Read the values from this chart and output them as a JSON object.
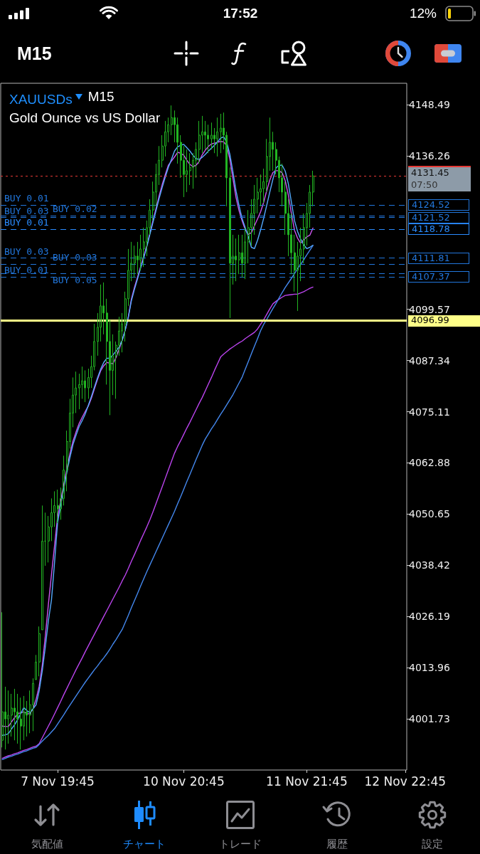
{
  "chart_data": {
    "type": "candlestick",
    "title": "XAUUSDs",
    "subtitle": "Gold Ounce vs US Dollar",
    "annotations": [
      "17:52",
      "12%",
      "M15",
      "M15",
      "気配値",
      "チャート",
      "トレード",
      "履歴",
      "設定",
      "07:50",
      {
        "text": "BUY 0.01",
        "y": 4124.52
      },
      {
        "text": "BUY 0.03",
        "y": 4121.52
      },
      {
        "text": "BUY 0.01",
        "y": 4118.78
      },
      {
        "text": "BUY 0.03",
        "y": 4111.81
      },
      {
        "text": "BUY 0.01",
        "y": 4107.37
      },
      {
        "text": "BUY 0.02",
        "y": 4122.0
      },
      {
        "text": "BUY 0.03",
        "y": 4110.4
      },
      {
        "text": "BUY 0.05",
        "y": 4108.2
      }
    ],
    "color": "#22b422",
    "categories": [
      null,
      null,
      null,
      null,
      null,
      null,
      null,
      null,
      null,
      null,
      null,
      null,
      null,
      null,
      null,
      null,
      null,
      null,
      "7 Nov 19:45",
      null,
      null,
      null,
      null,
      null,
      null,
      null,
      null,
      null,
      null,
      null,
      null,
      null,
      null,
      null,
      null,
      null,
      null,
      null,
      null,
      null,
      null,
      null,
      null,
      null,
      null,
      null,
      null,
      null,
      null,
      null,
      null,
      null,
      null,
      null,
      null,
      null,
      null,
      null,
      null,
      "10 Nov 20:45",
      null,
      null,
      null,
      null,
      null,
      null,
      null,
      null,
      null,
      null,
      null,
      null,
      null,
      null,
      null,
      null,
      null,
      null,
      null,
      null,
      null,
      null,
      null,
      null,
      null,
      null,
      null,
      null,
      null,
      null,
      null,
      null,
      null,
      null,
      null,
      null,
      null,
      null,
      null,
      "11 Nov 21:45",
      null,
      null,
      null,
      null,
      null,
      null,
      null,
      null,
      null,
      null,
      null,
      null,
      null,
      null,
      null,
      null,
      null,
      null,
      null,
      null,
      null,
      null,
      null,
      null,
      null,
      null,
      null,
      null,
      null,
      null,
      null,
      "12 Nov 22:45"
    ],
    "ohlc": [
      [
        3996.6,
        4027.2,
        3994.9,
        4003.4
      ],
      [
        4003.4,
        4009.4,
        3994.4,
        4001.7
      ],
      [
        4001.7,
        4008.5,
        3995.8,
        4002.6
      ],
      [
        4002.6,
        4007.7,
        3997.5,
        4004.3
      ],
      [
        4004.3,
        4008.9,
        3996.6,
        4003.4
      ],
      [
        4003.4,
        4007.7,
        3995.8,
        4001.7
      ],
      [
        4001.7,
        4006.8,
        3994.4,
        4000.0
      ],
      [
        4000.0,
        4007.2,
        3996.6,
        4003.4
      ],
      [
        4003.4,
        4006.0,
        3997.5,
        4002.6
      ],
      [
        4002.6,
        4008.5,
        3998.3,
        4005.1
      ],
      [
        4005.1,
        4011.4,
        3998.8,
        4010.2
      ],
      [
        4011.1,
        4017.0,
        4011.1,
        4015.3
      ],
      [
        4015.3,
        4023.8,
        4011.9,
        4022.1
      ],
      [
        4023.0,
        4052.7,
        4023.0,
        4044.2
      ],
      [
        4044.2,
        4051.0,
        4038.3,
        4044.2
      ],
      [
        4044.2,
        4050.2,
        4039.1,
        4047.6
      ],
      [
        4047.6,
        4054.4,
        4044.2,
        4051.0
      ],
      [
        4051.0,
        4056.1,
        4047.6,
        4052.7
      ],
      [
        4052.7,
        4056.5,
        4048.5,
        4051.9
      ],
      [
        4051.9,
        4057.0,
        4049.3,
        4054.4
      ],
      [
        4054.4,
        4064.6,
        4052.7,
        4061.2
      ],
      [
        4061.2,
        4070.6,
        4056.1,
        4068.0
      ],
      [
        4068.0,
        4078.2,
        4066.3,
        4074.8
      ],
      [
        4074.8,
        4083.3,
        4071.4,
        4079.1
      ],
      [
        4079.1,
        4084.7,
        4074.8,
        4080.8
      ],
      [
        4080.8,
        4084.2,
        4075.7,
        4081.6
      ],
      [
        4081.6,
        4085.9,
        4078.2,
        4082.5
      ],
      [
        4082.5,
        4085.0,
        4077.4,
        4080.8
      ],
      [
        4080.8,
        4085.4,
        4078.2,
        4083.3
      ],
      [
        4083.3,
        4088.5,
        4080.8,
        4085.9
      ],
      [
        4085.9,
        4096.1,
        4085.0,
        4091.9
      ],
      [
        4091.9,
        4098.7,
        4088.5,
        4095.3
      ],
      [
        4095.3,
        4105.5,
        4091.9,
        4100.4
      ],
      [
        4100.4,
        4106.0,
        4093.6,
        4098.7
      ],
      [
        4098.7,
        4102.1,
        4081.6,
        4091.9
      ],
      [
        4091.9,
        4097.0,
        4074.3,
        4085.0
      ],
      [
        4085.0,
        4093.6,
        4079.1,
        4088.5
      ],
      [
        4088.5,
        4091.9,
        4078.2,
        4091.0
      ],
      [
        4091.0,
        4097.8,
        4088.5,
        4094.4
      ],
      [
        4094.4,
        4098.7,
        4089.3,
        4096.1
      ],
      [
        4096.1,
        4103.8,
        4091.9,
        4102.1
      ],
      [
        4102.1,
        4114.0,
        4100.4,
        4108.9
      ],
      [
        4108.9,
        4115.7,
        4106.3,
        4110.6
      ],
      [
        4110.6,
        4114.8,
        4107.2,
        4112.3
      ],
      [
        4112.3,
        4115.7,
        4108.0,
        4111.4
      ],
      [
        4111.4,
        4117.4,
        4108.9,
        4114.0
      ],
      [
        4114.0,
        4119.1,
        4109.7,
        4115.7
      ],
      [
        4115.7,
        4120.8,
        4112.3,
        4119.1
      ],
      [
        4119.1,
        4125.9,
        4117.4,
        4123.3
      ],
      [
        4123.3,
        4130.1,
        4120.8,
        4127.6
      ],
      [
        4127.6,
        4134.4,
        4124.2,
        4131.8
      ],
      [
        4131.8,
        4138.6,
        4129.3,
        4135.2
      ],
      [
        4135.2,
        4141.2,
        4133.5,
        4138.6
      ],
      [
        4138.6,
        4144.6,
        4136.1,
        4142.0
      ],
      [
        4142.0,
        4145.4,
        4139.5,
        4143.7
      ],
      [
        4143.7,
        4148.3,
        4141.2,
        4145.4
      ],
      [
        4145.4,
        4147.1,
        4139.5,
        4143.7
      ],
      [
        4143.7,
        4145.4,
        4134.4,
        4139.5
      ],
      [
        4139.5,
        4141.2,
        4131.0,
        4135.2
      ],
      [
        4135.2,
        4138.6,
        4126.4,
        4131.8
      ],
      [
        4131.8,
        4137.8,
        4127.6,
        4132.7
      ],
      [
        4132.7,
        4136.9,
        4129.3,
        4133.5
      ],
      [
        4133.5,
        4136.9,
        4128.4,
        4135.2
      ],
      [
        4135.2,
        4139.5,
        4131.0,
        4137.8
      ],
      [
        4137.8,
        4144.6,
        4134.4,
        4141.2
      ],
      [
        4141.2,
        4145.8,
        4136.9,
        4142.0
      ],
      [
        4142.0,
        4144.6,
        4137.8,
        4141.2
      ],
      [
        4141.2,
        4143.7,
        4136.9,
        4140.3
      ],
      [
        4140.3,
        4144.2,
        4137.8,
        4141.2
      ],
      [
        4141.2,
        4142.9,
        4136.9,
        4140.3
      ],
      [
        4140.3,
        4145.4,
        4136.1,
        4142.0
      ],
      [
        4142.0,
        4146.3,
        4136.9,
        4142.9
      ],
      [
        4142.9,
        4146.6,
        4137.8,
        4141.2
      ],
      [
        4141.2,
        4142.0,
        4124.2,
        4131.0
      ],
      [
        4131.0,
        4133.5,
        4097.5,
        4110.6
      ],
      [
        4110.6,
        4117.4,
        4105.5,
        4112.3
      ],
      [
        4112.3,
        4116.5,
        4106.3,
        4111.4
      ],
      [
        4111.4,
        4117.4,
        4108.0,
        4113.1
      ],
      [
        4113.1,
        4117.4,
        4107.2,
        4110.6
      ],
      [
        4110.6,
        4119.1,
        4106.8,
        4115.7
      ],
      [
        4115.7,
        4123.3,
        4110.6,
        4119.1
      ],
      [
        4119.1,
        4125.9,
        4114.8,
        4122.5
      ],
      [
        4122.5,
        4129.3,
        4117.4,
        4125.9
      ],
      [
        4125.9,
        4131.0,
        4122.5,
        4127.6
      ],
      [
        4127.6,
        4131.8,
        4124.2,
        4128.4
      ],
      [
        4128.4,
        4133.2,
        4125.0,
        4130.1
      ],
      [
        4130.1,
        4140.3,
        4127.6,
        4136.1
      ],
      [
        4136.1,
        4145.4,
        4132.7,
        4139.5
      ],
      [
        4139.5,
        4142.0,
        4132.7,
        4137.8
      ],
      [
        4137.8,
        4139.5,
        4131.8,
        4135.2
      ],
      [
        4135.2,
        4136.1,
        4127.6,
        4131.0
      ],
      [
        4131.0,
        4134.4,
        4124.2,
        4127.6
      ],
      [
        4127.6,
        4130.1,
        4117.4,
        4122.5
      ],
      [
        4122.5,
        4125.9,
        4112.3,
        4117.4
      ],
      [
        4117.4,
        4122.5,
        4108.0,
        4113.1
      ],
      [
        4113.1,
        4117.4,
        4103.8,
        4108.9
      ],
      [
        4108.9,
        4115.7,
        4099.2,
        4112.3
      ],
      [
        4112.3,
        4119.1,
        4106.3,
        4114.0
      ],
      [
        4114.0,
        4122.5,
        4110.6,
        4119.1
      ],
      [
        4119.1,
        4125.0,
        4114.8,
        4122.5
      ],
      [
        4122.5,
        4129.3,
        4119.1,
        4127.6
      ],
      [
        4127.6,
        4132.7,
        4124.2,
        4131.45
      ],
      null,
      null,
      null,
      null,
      null,
      null,
      null,
      null,
      null,
      null,
      null,
      null,
      null,
      null,
      null,
      null,
      null,
      null,
      null,
      null,
      null,
      null,
      null,
      null,
      null,
      null,
      null,
      null,
      null,
      null
    ],
    "series": [
      {
        "type": "line",
        "color": "#cc55ee",
        "values": [
          4000.0,
          3999.9,
          3999.9,
          4001.0,
          4002.0,
          4002.9,
          4003.2,
          4003.4,
          4003.0,
          4002.9,
          4004.2,
          4006.4,
          4009.5,
          4014.5,
          4021.5,
          4029.1,
          4036.2,
          4043.1,
          4050.0,
          4053.9,
          4057.8,
          4061.5,
          4065.1,
          4068.1,
          4070.3,
          4072.3,
          4073.8,
          4075.2,
          4076.5,
          4078.4,
          4080.7,
          4082.9,
          4084.9,
          4086.1,
          4086.9,
          4086.7,
          4086.6,
          4088.1,
          4090.1,
          4092.2,
          4094.7,
          4097.9,
          4102.1,
          4104.9,
          4107.3,
          4109.8,
          4112.3,
          4114.8,
          4117.8,
          4120.8,
          4123.7,
          4126.7,
          4129.4,
          4131.8,
          4134.0,
          4135.0,
          4136.0,
          4137.1,
          4136.9,
          4136.4,
          4135.2,
          4134.2,
          4133.7,
          4134.0,
          4134.9,
          4136.5,
          4137.6,
          4138.5,
          4139.1,
          4139.3,
          4139.5,
          4139.7,
          4139.6,
          4138.6,
          4135.4,
          4130.8,
          4126.3,
          4123.1,
          4120.7,
          4118.6,
          4117.5,
          4117.9,
          4119.6,
          4121.2,
          4122.9,
          4125.2,
          4128.0,
          4130.5,
          4132.3,
          4132.7,
          4132.7,
          4132.2,
          4130.3,
          4126.9,
          4122.5,
          4118.5,
          4116.6,
          4115.4,
          4116.2,
          4116.9,
          4117.3,
          4119.0,
          null,
          null,
          null,
          null,
          null,
          null,
          null,
          null,
          null,
          null,
          null,
          null,
          null,
          null,
          null,
          null,
          null,
          null,
          null,
          null,
          null,
          null,
          null,
          null,
          null,
          null,
          null,
          null,
          null,
          null
        ]
      },
      {
        "type": "line",
        "color": "#55aaff",
        "values": [
          3997.8,
          3997.9,
          3998.2,
          3999.3,
          4000.3,
          4001.5,
          4003.0,
          4004.4,
          4003.7,
          4003.2,
          4004.1,
          4005.1,
          4008.4,
          4013.1,
          4018.9,
          4025.2,
          4030.1,
          4039.1,
          4048.7,
          4052.7,
          4056.7,
          4060.6,
          4064.2,
          4067.3,
          4069.5,
          4071.6,
          4073.0,
          4074.6,
          4076.7,
          4078.8,
          4081.1,
          4083.3,
          4085.3,
          4086.9,
          4087.9,
          4087.9,
          4088.7,
          4089.6,
          4090.6,
          4092.2,
          4094.7,
          4097.7,
          4101.7,
          4104.4,
          4106.9,
          4109.5,
          4111.9,
          4114.5,
          4117.5,
          4120.4,
          4123.2,
          4126.1,
          4128.7,
          4131.2,
          4133.5,
          4135.4,
          4137.4,
          4138.4,
          4138.8,
          4139.0,
          4138.2,
          4137.4,
          4136.4,
          4135.6,
          4135.4,
          4135.9,
          4136.6,
          4137.4,
          4138.1,
          4138.8,
          4139.6,
          4140.5,
          4140.8,
          4139.4,
          4136.6,
          4132.4,
          4127.9,
          4124.3,
          4121.2,
          4119.1,
          4116.9,
          4114.4,
          4114.1,
          4116.1,
          4118.6,
          4121.4,
          4124.5,
          4127.7,
          4130.7,
          4133.4,
          4134.0,
          4134.0,
          4132.6,
          4129.6,
          4125.2,
          4120.8,
          4118.2,
          4116.4,
          4115.0,
          4114.1,
          4114.4,
          4114.9,
          null,
          null,
          null,
          null,
          null,
          null,
          null,
          null,
          null,
          null,
          null,
          null,
          null,
          null,
          null,
          null,
          null,
          null,
          null,
          null,
          null,
          null,
          null,
          null,
          null,
          null,
          null,
          null,
          null,
          null
        ]
      },
      {
        "type": "line",
        "color": "#bb44ee",
        "values": [
          3992.3,
          3992.6,
          3992.9,
          3993.1,
          3993.4,
          3993.6,
          3993.9,
          3994.2,
          3994.4,
          3994.7,
          3995.0,
          3995.2,
          3995.8,
          3997.2,
          3998.6,
          4000.0,
          4001.4,
          4002.9,
          4004.4,
          4005.9,
          4007.5,
          4009.0,
          4010.5,
          4012.0,
          4013.5,
          4014.9,
          4016.3,
          4017.8,
          4019.2,
          4020.6,
          4022.0,
          4023.4,
          4024.8,
          4026.2,
          4027.6,
          4029.0,
          4030.4,
          4031.8,
          4033.2,
          4034.7,
          4036.1,
          4037.7,
          4039.4,
          4041.0,
          4042.7,
          4044.4,
          4046.0,
          4047.6,
          4049.3,
          4051.2,
          4053.2,
          4055.2,
          4057.2,
          4059.2,
          4061.2,
          4063.2,
          4065.2,
          4066.8,
          4068.2,
          4069.7,
          4071.2,
          4072.6,
          4074.1,
          4075.6,
          4077.1,
          4078.5,
          4080.1,
          4081.7,
          4083.3,
          4085.0,
          4086.6,
          4088.2,
          4088.9,
          4089.5,
          4090.1,
          4090.6,
          4091.1,
          4091.6,
          4092.0,
          4092.6,
          4093.1,
          4093.6,
          4094.1,
          4094.9,
          4096.0,
          4097.1,
          4098.4,
          4099.7,
          4100.9,
          4101.5,
          4102.0,
          4102.5,
          4102.9,
          4103.0,
          4103.1,
          4103.2,
          4103.2,
          4103.5,
          4103.8,
          4104.2,
          4104.6,
          4104.9,
          null,
          null,
          null,
          null,
          null,
          null,
          null,
          null,
          null,
          null,
          null,
          null,
          null,
          null,
          null,
          null,
          null,
          null,
          null,
          null,
          null,
          null,
          null,
          null,
          null,
          null,
          null,
          null,
          null,
          null
        ]
      },
      {
        "type": "line",
        "color": "#4488ee",
        "values": [
          3992.0,
          3992.3,
          3992.6,
          3992.8,
          3993.1,
          3993.3,
          3993.6,
          3993.9,
          3994.1,
          3994.4,
          3994.7,
          3994.9,
          3995.6,
          3996.4,
          3997.1,
          3997.8,
          3998.6,
          3999.4,
          4000.5,
          4001.6,
          4002.7,
          4003.9,
          4005.0,
          4006.1,
          4007.2,
          4008.3,
          4009.4,
          4010.5,
          4011.5,
          4012.5,
          4013.5,
          4014.4,
          4015.4,
          4016.3,
          4017.3,
          4018.4,
          4019.6,
          4020.7,
          4021.9,
          4023.1,
          4024.8,
          4026.5,
          4028.3,
          4030.0,
          4031.7,
          4033.5,
          4035.2,
          4036.9,
          4038.5,
          4040.1,
          4041.7,
          4043.3,
          4044.9,
          4046.5,
          4048.1,
          4049.7,
          4051.3,
          4053.1,
          4054.8,
          4056.6,
          4058.4,
          4060.1,
          4061.9,
          4063.7,
          4065.4,
          4067.1,
          4068.6,
          4069.8,
          4071.0,
          4072.1,
          4073.3,
          4074.5,
          4075.6,
          4076.8,
          4078.0,
          4079.2,
          4080.6,
          4082.0,
          4083.4,
          4085.3,
          4087.1,
          4089.0,
          4090.8,
          4092.6,
          4094.5,
          4096.0,
          4097.2,
          4098.5,
          4099.8,
          4101.0,
          4102.3,
          4103.6,
          4104.8,
          4105.9,
          4107.0,
          4108.1,
          4109.3,
          4110.3,
          4111.4,
          4112.6,
          4113.7,
          4114.8,
          null,
          null,
          null,
          null,
          null,
          null,
          null,
          null,
          null,
          null,
          null,
          null,
          null,
          null,
          null,
          null,
          null,
          null,
          null,
          null,
          null,
          null,
          null,
          null,
          null,
          null,
          null,
          null,
          null,
          null
        ]
      }
    ],
    "ylim": [
      3989.5,
      4153.6
    ],
    "yticks": [
      4148.49,
      4136.26,
      4099.57,
      4087.34,
      4075.11,
      4062.88,
      4050.65,
      4038.42,
      4026.19,
      4013.96,
      4001.73
    ],
    "ref_lines": [
      {
        "axis": "y",
        "value": 4131.45,
        "label": "4131.45",
        "color": "#e53935",
        "line_style": "dotted"
      },
      {
        "axis": "y",
        "value": 4124.52,
        "label": "4124.52",
        "color": "#2277dd",
        "line_style": "dashed"
      },
      {
        "axis": "y",
        "value": 4121.52,
        "label": "4121.52",
        "color": "#2277dd",
        "line_style": "dashed"
      },
      {
        "axis": "y",
        "value": 4118.78,
        "label": "4118.78",
        "color": "#2a8cff",
        "line_style": "dashed"
      },
      {
        "axis": "y",
        "value": 4111.81,
        "label": "4111.81",
        "color": "#2277dd",
        "line_style": "dashed"
      },
      {
        "axis": "y",
        "value": 4107.37,
        "label": "4107.37",
        "color": "#2277dd",
        "line_style": "dashed"
      },
      {
        "axis": "y",
        "value": 4122.0,
        "color": "#2277dd",
        "line_style": "dashed"
      },
      {
        "axis": "y",
        "value": 4110.4,
        "color": "#2277dd",
        "line_style": "dashed"
      },
      {
        "axis": "y",
        "value": 4108.2,
        "color": "#2277dd",
        "line_style": "dashed"
      },
      {
        "axis": "y",
        "value": 4096.99,
        "label": "4096.99",
        "color": "#ffff88",
        "line_style": "solid"
      }
    ]
  }
}
